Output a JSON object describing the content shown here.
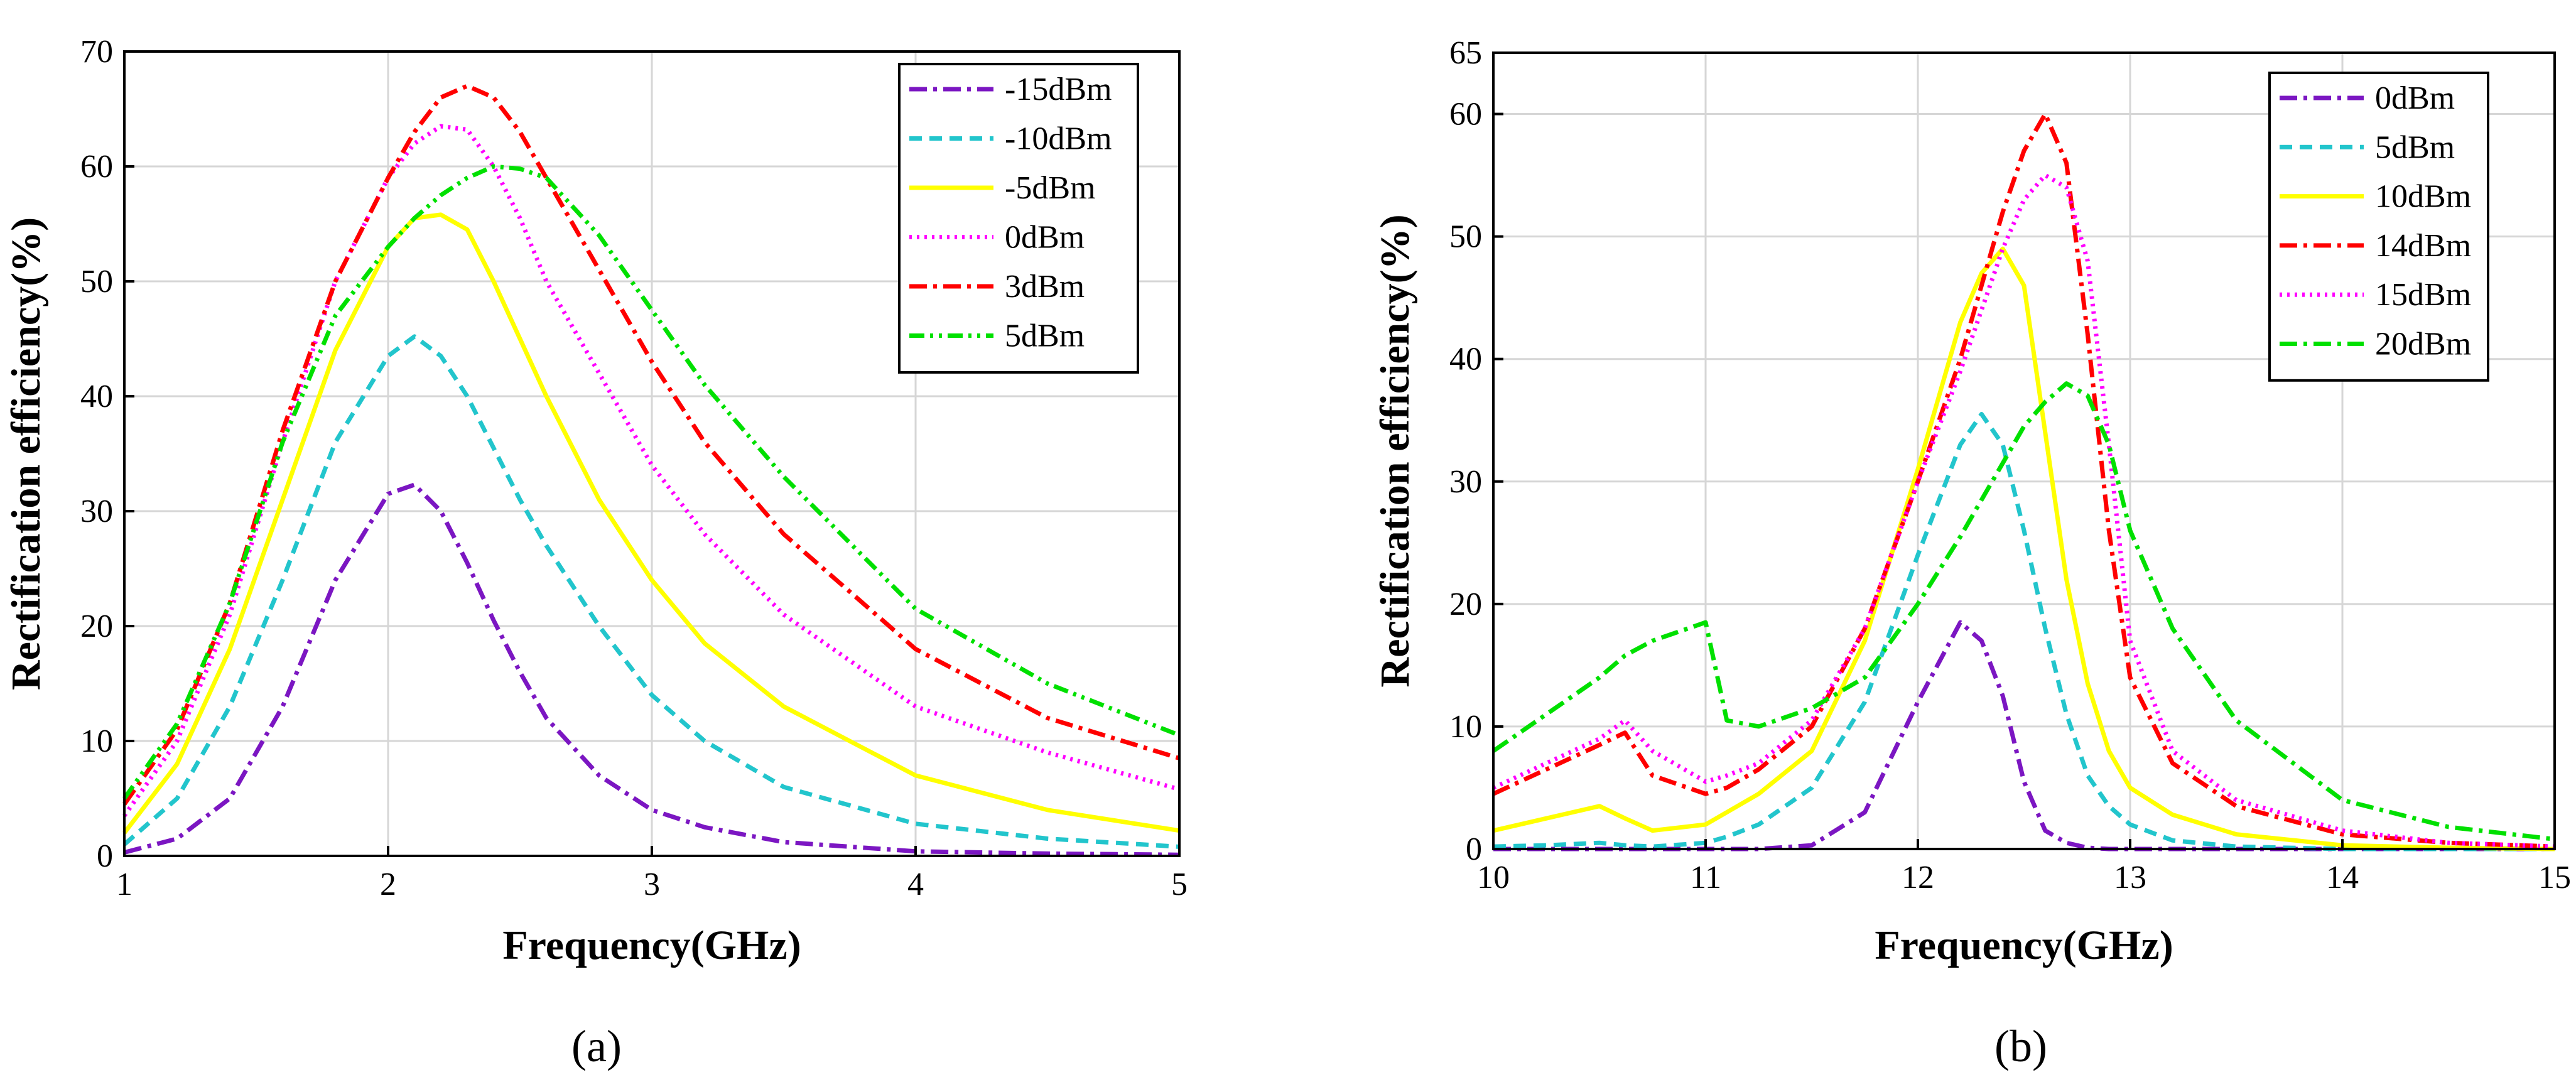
{
  "chart_data": [
    {
      "type": "line",
      "panel_label": "(a)",
      "title": "",
      "xlabel": "Frequency(GHz)",
      "ylabel": "Rectification efficiency(%)",
      "xlim": [
        1,
        5
      ],
      "ylim": [
        0,
        70
      ],
      "xticks": [
        1,
        2,
        3,
        4,
        5
      ],
      "yticks": [
        0,
        10,
        20,
        30,
        40,
        50,
        60,
        70
      ],
      "grid": true,
      "legend_position": "top-right",
      "x": [
        1.0,
        1.2,
        1.4,
        1.6,
        1.8,
        2.0,
        2.1,
        2.2,
        2.3,
        2.4,
        2.5,
        2.6,
        2.8,
        3.0,
        3.2,
        3.5,
        4.0,
        4.5,
        5.0
      ],
      "series": [
        {
          "name": "-15dBm",
          "color": "#7B16C2",
          "dash": "dashdot",
          "values": [
            0.3,
            1.5,
            5,
            13,
            24,
            31.5,
            32.3,
            30,
            25.5,
            20.5,
            16,
            12,
            7,
            4,
            2.5,
            1.2,
            0.4,
            0.2,
            0.1
          ]
        },
        {
          "name": "-10dBm",
          "color": "#22C5CC",
          "dash": "dash",
          "values": [
            1,
            5,
            13,
            24,
            36,
            43.5,
            45.2,
            43.5,
            40,
            35.5,
            31,
            27,
            20,
            14,
            10,
            6,
            2.8,
            1.5,
            0.8
          ]
        },
        {
          "name": "-5dBm",
          "color": "#FFFF00",
          "dash": "solid",
          "values": [
            2,
            8,
            18,
            31,
            44,
            53,
            55.5,
            55.8,
            54.5,
            50,
            45,
            40,
            31,
            24,
            18.5,
            13,
            7,
            4,
            2.2
          ]
        },
        {
          "name": "0dBm",
          "color": "#FF00FF",
          "dash": "dot",
          "values": [
            3.5,
            10,
            21,
            36,
            50,
            59,
            62,
            63.5,
            63.2,
            60,
            55.5,
            50,
            42,
            34,
            28,
            21,
            13,
            9,
            5.8
          ]
        },
        {
          "name": "3dBm",
          "color": "#FF0000",
          "dash": "dashdot",
          "values": [
            4.5,
            11,
            22,
            37,
            50,
            59,
            63,
            66,
            67,
            66,
            63,
            59,
            51,
            43,
            36,
            28,
            18,
            12,
            8.5
          ]
        },
        {
          "name": "5dBm",
          "color": "#00E000",
          "dash": "dashdotdot",
          "values": [
            5,
            11.5,
            22,
            36,
            47,
            53,
            55.5,
            57.5,
            59,
            60,
            59.8,
            59,
            54,
            47.5,
            41,
            33,
            21.5,
            15,
            10.5
          ]
        }
      ]
    },
    {
      "type": "line",
      "panel_label": "(b)",
      "title": "",
      "xlabel": "Frequency(GHz)",
      "ylabel": "Rectification efficiency(%)",
      "xlim": [
        10,
        15
      ],
      "ylim": [
        0,
        65
      ],
      "xticks": [
        10,
        11,
        12,
        13,
        14,
        15
      ],
      "yticks": [
        0,
        10,
        20,
        30,
        40,
        50,
        60,
        65
      ],
      "grid": true,
      "legend_position": "top-right",
      "x": [
        10.0,
        10.25,
        10.5,
        10.62,
        10.75,
        11.0,
        11.1,
        11.25,
        11.5,
        11.75,
        12.0,
        12.2,
        12.3,
        12.4,
        12.5,
        12.6,
        12.7,
        12.8,
        12.9,
        13.0,
        13.2,
        13.5,
        14.0,
        14.5,
        15.0
      ],
      "series": [
        {
          "name": "0dBm",
          "color": "#7B16C2",
          "dash": "dashdot",
          "values": [
            0,
            0,
            0,
            0,
            0,
            0,
            0,
            0,
            0.3,
            3,
            12,
            18.5,
            17,
            12.5,
            5.5,
            1.5,
            0.5,
            0.1,
            0,
            0,
            0,
            0,
            0,
            0,
            0
          ]
        },
        {
          "name": "5dBm",
          "color": "#22C5CC",
          "dash": "dash",
          "values": [
            0.2,
            0.3,
            0.5,
            0.3,
            0.2,
            0.5,
            1,
            2,
            5,
            12,
            24,
            33,
            35.5,
            33,
            26,
            18,
            11,
            6,
            3.5,
            2,
            0.7,
            0.2,
            0,
            0,
            0
          ]
        },
        {
          "name": "10dBm",
          "color": "#FFFF00",
          "dash": "solid",
          "values": [
            1.5,
            2.5,
            3.5,
            2.5,
            1.5,
            2,
            3,
            4.5,
            8,
            17,
            31,
            43,
            47,
            49,
            46,
            34,
            22,
            13.5,
            8,
            5,
            2.8,
            1.2,
            0.3,
            0.1,
            0
          ]
        },
        {
          "name": "14dBm",
          "color": "#FF0000",
          "dash": "dashdot",
          "values": [
            4.5,
            6.5,
            8.5,
            9.5,
            6,
            4.5,
            5,
            6.5,
            10,
            18,
            30,
            40,
            46,
            52,
            57,
            60,
            56,
            42,
            26,
            14,
            7,
            3.5,
            1.2,
            0.5,
            0.2
          ]
        },
        {
          "name": "15dBm",
          "color": "#FF00FF",
          "dash": "dot",
          "values": [
            5,
            7,
            9,
            10.5,
            8,
            5.5,
            6,
            7,
            10.5,
            18,
            30,
            39,
            44,
            49,
            53,
            55,
            54,
            48,
            33,
            17,
            8,
            4,
            1.5,
            0.5,
            0.2
          ]
        },
        {
          "name": "20dBm",
          "color": "#00E000",
          "dash": "dashdot",
          "values": [
            8,
            11,
            14,
            15.8,
            17,
            18.5,
            10.5,
            10,
            11.5,
            14,
            20,
            25.5,
            28.5,
            31.5,
            34.5,
            36.5,
            38,
            37,
            33,
            26,
            18,
            10.5,
            4,
            1.8,
            0.8
          ]
        }
      ]
    }
  ]
}
